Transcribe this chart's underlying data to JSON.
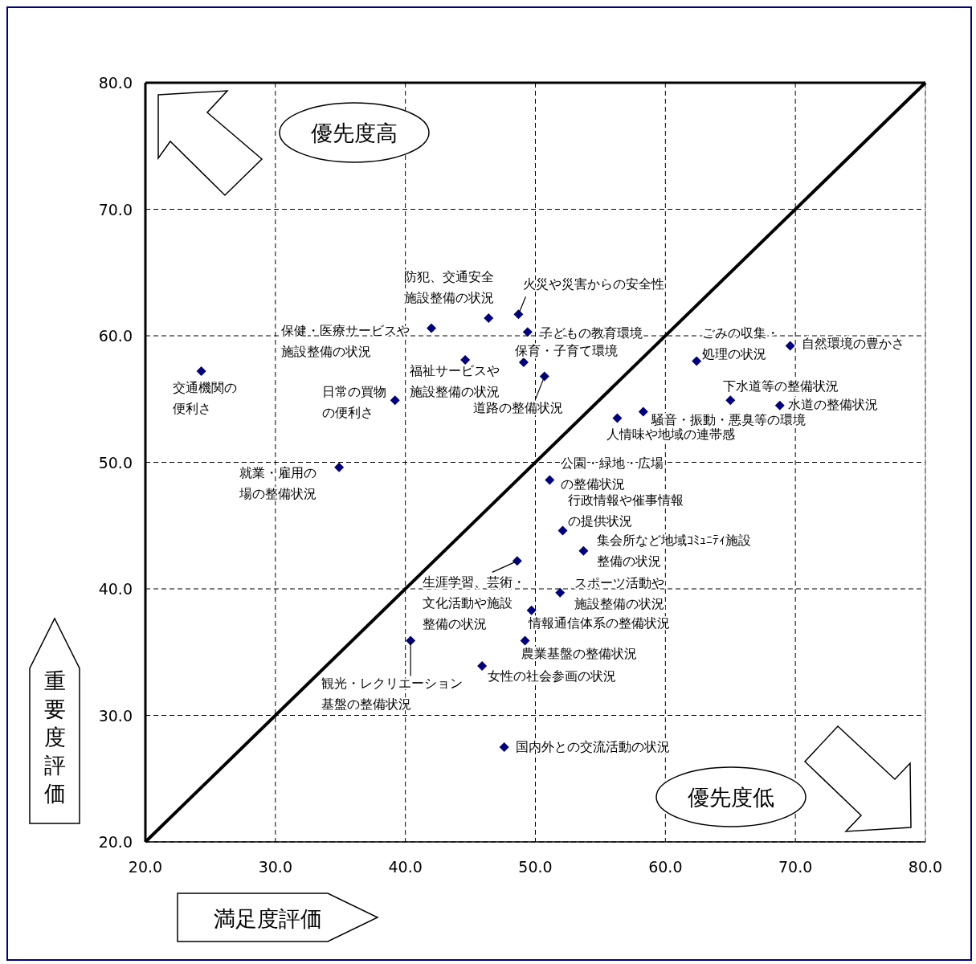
{
  "chart_data": {
    "type": "scatter",
    "xlabel": "満足度評価",
    "ylabel": "重要度評価",
    "xlim": [
      20,
      80
    ],
    "ylim": [
      20,
      80
    ],
    "xticks": [
      {
        "value": 20,
        "label": "20.0"
      },
      {
        "value": 30,
        "label": "30.0"
      },
      {
        "value": 40,
        "label": "40.0"
      },
      {
        "value": 50,
        "label": "50.0"
      },
      {
        "value": 60,
        "label": "60.0"
      },
      {
        "value": 70,
        "label": "70.0"
      },
      {
        "value": 80,
        "label": "80.0"
      }
    ],
    "yticks": [
      {
        "value": 20,
        "label": "20.0"
      },
      {
        "value": 30,
        "label": "30.0"
      },
      {
        "value": 40,
        "label": "40.0"
      },
      {
        "value": 50,
        "label": "50.0"
      },
      {
        "value": 60,
        "label": "60.0"
      },
      {
        "value": 70,
        "label": "70.0"
      },
      {
        "value": 80,
        "label": "80.0"
      }
    ],
    "grid": true,
    "marker": "diamond",
    "series": [
      {
        "type": "scatter",
        "color": "#000080",
        "x": [
          24.3,
          42.0,
          46.4,
          48.7,
          49.4,
          49.1,
          44.6,
          50.7,
          39.2,
          34.9,
          62.4,
          69.6,
          65.0,
          68.8,
          58.3,
          56.3,
          51.1,
          52.1,
          53.7,
          48.6,
          51.9,
          49.7,
          49.2,
          40.4,
          45.9,
          47.6
        ],
        "values": [
          57.2,
          60.6,
          61.4,
          61.7,
          60.3,
          57.9,
          58.1,
          56.8,
          54.9,
          49.6,
          58.0,
          59.2,
          54.9,
          54.5,
          54.0,
          53.5,
          48.6,
          44.6,
          43.0,
          42.2,
          39.7,
          38.3,
          35.9,
          35.9,
          33.9,
          27.5
        ]
      },
      {
        "type": "line",
        "color": "#000000",
        "marker": "none",
        "line_style": "solid",
        "x": [
          20,
          80
        ],
        "values": [
          20,
          80
        ]
      }
    ],
    "annotations": [
      {
        "text": "交通機関の便利さ",
        "x": 24.3,
        "y": 57.2
      },
      {
        "text": "保健・医療サービスや施設整備の状況",
        "x": 42.0,
        "y": 60.6
      },
      {
        "text": "防犯、交通安全施設整備の状況",
        "x": 46.4,
        "y": 61.4
      },
      {
        "text": "火災や災害からの安全性",
        "x": 48.7,
        "y": 61.7
      },
      {
        "text": "子どもの教育環境",
        "x": 49.4,
        "y": 60.3
      },
      {
        "text": "保育・子育て環境",
        "x": 49.1,
        "y": 57.9
      },
      {
        "text": "福祉サービスや施設整備の状況",
        "x": 44.6,
        "y": 58.1
      },
      {
        "text": "道路の整備状況",
        "x": 50.7,
        "y": 56.8
      },
      {
        "text": "日常の買物の便利さ",
        "x": 39.2,
        "y": 54.9
      },
      {
        "text": "就業・雇用の場の整備状況",
        "x": 34.9,
        "y": 49.6
      },
      {
        "text": "ごみの収集・処理の状況",
        "x": 62.4,
        "y": 58.0
      },
      {
        "text": "自然環境の豊かさ",
        "x": 69.6,
        "y": 59.2
      },
      {
        "text": "下水道等の整備状況",
        "x": 65.0,
        "y": 54.9
      },
      {
        "text": "水道の整備状況",
        "x": 68.8,
        "y": 54.5
      },
      {
        "text": "騒音・振動・悪臭等の環境",
        "x": 58.3,
        "y": 54.0
      },
      {
        "text": "人情味や地域の連帯感",
        "x": 56.3,
        "y": 53.5
      },
      {
        "text": "公園・緑地・広場の整備状況",
        "x": 51.1,
        "y": 48.6
      },
      {
        "text": "行政情報や催事情報の提供状況",
        "x": 52.1,
        "y": 44.6
      },
      {
        "text": "集会所など地域ｺﾐｭﾆﾃｨ施設整備の状況",
        "x": 53.7,
        "y": 43.0
      },
      {
        "text": "生涯学習、芸術・文化活動や施設整備の状況",
        "x": 48.6,
        "y": 42.2
      },
      {
        "text": "スポーツ活動や施設整備の状況",
        "x": 51.9,
        "y": 39.7
      },
      {
        "text": "情報通信体系の整備状況",
        "x": 49.7,
        "y": 38.3
      },
      {
        "text": "農業基盤の整備状況",
        "x": 49.2,
        "y": 35.9
      },
      {
        "text": "観光・レクリエーション基盤の整備状況",
        "x": 40.4,
        "y": 35.9
      },
      {
        "text": "女性の社会参画の状況",
        "x": 45.9,
        "y": 33.9
      },
      {
        "text": "国内外との交流活動の状況",
        "x": 47.6,
        "y": 27.5
      },
      "優先度高",
      "優先度低"
    ]
  }
}
